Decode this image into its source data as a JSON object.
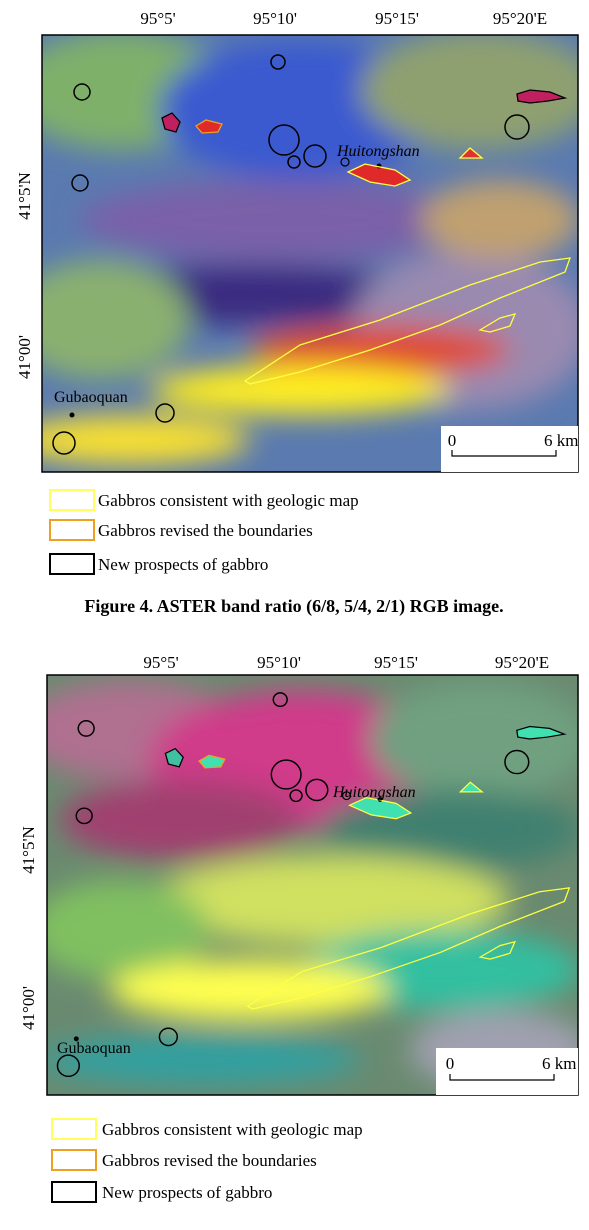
{
  "figures": [
    {
      "top_labels": [
        "95°5'",
        "95°10'",
        "95°15'",
        "95°20'E"
      ],
      "left_labels": [
        "41°5'N",
        "41°00'"
      ],
      "places": [
        "Huitongshan",
        "Gubaoquan"
      ],
      "scale": {
        "start": "0",
        "end": "6 km"
      },
      "legend": [
        "Gabbros consistent with geologic map",
        "Gabbros revised the boundaries",
        "New prospects of gabbro"
      ],
      "caption": "Figure 4. ASTER band ratio (6/8, 5/4, 2/1) RGB image."
    },
    {
      "top_labels": [
        "95°5'",
        "95°10'",
        "95°15'",
        "95°20'E"
      ],
      "left_labels": [
        "41°5'N",
        "41°00'"
      ],
      "places": [
        "Huitongshan",
        "Gubaoquan"
      ],
      "scale": {
        "start": "0",
        "end": "6 km"
      },
      "legend": [
        "Gabbros consistent with geologic map",
        "Gabbros revised the boundaries",
        "New prospects of gabbro"
      ]
    }
  ]
}
